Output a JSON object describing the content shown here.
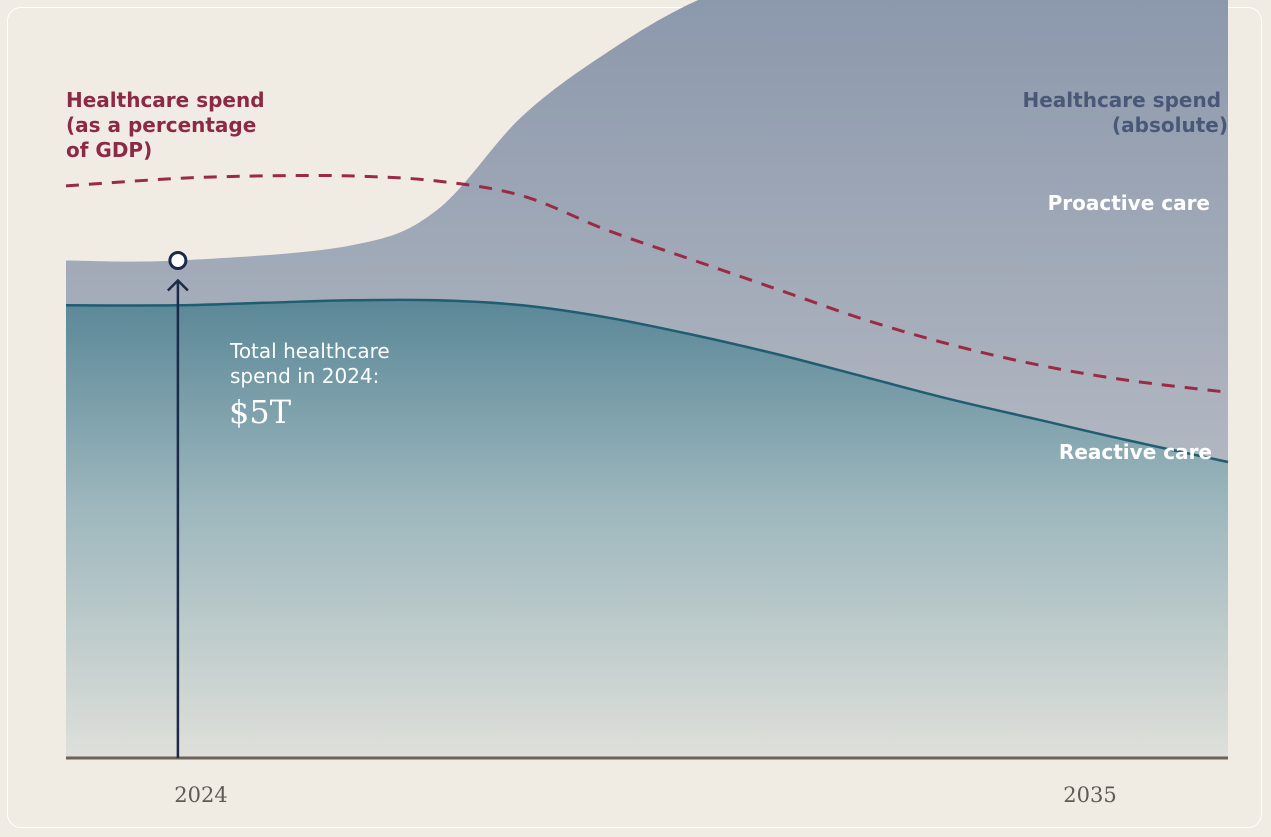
{
  "chart_data": {
    "type": "area",
    "left_axis_label": [
      "Healthcare spend",
      "(as a percentage",
      "of GDP)"
    ],
    "right_axis_label": [
      "Healthcare spend",
      "(absolute)"
    ],
    "x_ticks": [
      "2024",
      "2035"
    ],
    "x_range": [
      2022.7,
      2036.2
    ],
    "series": [
      {
        "name": "Proactive care",
        "role": "upper area (total absolute spend)",
        "x": [
          2022.7,
          2024,
          2026,
          2027,
          2028,
          2029,
          2030,
          2031,
          2032,
          2033,
          2034,
          2035,
          2036.2
        ],
        "values": [
          1.0,
          1.0,
          1.03,
          1.1,
          1.29,
          1.42,
          1.52,
          1.58,
          1.61,
          1.63,
          1.64,
          1.645,
          1.65
        ]
      },
      {
        "name": "Reactive care",
        "role": "lower area",
        "x": [
          2022.7,
          2024,
          2025,
          2026,
          2027,
          2028,
          2029,
          2030,
          2031,
          2032,
          2033,
          2034,
          2035,
          2036.2
        ],
        "values": [
          0.91,
          0.91,
          0.915,
          0.92,
          0.92,
          0.91,
          0.885,
          0.85,
          0.81,
          0.765,
          0.72,
          0.68,
          0.64,
          0.595
        ]
      },
      {
        "name": "Healthcare spend (as a percentage of GDP)",
        "role": "dashed line",
        "x": [
          2022.7,
          2024,
          2025,
          2026,
          2027,
          2028,
          2029,
          2030,
          2031,
          2032,
          2033,
          2034,
          2035,
          2036.2
        ],
        "values": [
          1.15,
          1.165,
          1.17,
          1.17,
          1.16,
          1.13,
          1.06,
          1.0,
          0.94,
          0.88,
          0.83,
          0.79,
          0.76,
          0.735
        ]
      }
    ],
    "series_labels": {
      "proactive": "Proactive care",
      "reactive": "Reactive care"
    },
    "annotation": {
      "x": 2024,
      "text_line1": "Total healthcare",
      "text_line2": "spend in 2024:",
      "value": "$5T"
    },
    "colors": {
      "proactive": "#8c98ad",
      "reactive": "#5e8b99",
      "dashed": "#9b2a44",
      "reactive_line": "#1f5d70",
      "annotation_line": "#1b2a4a",
      "axis": "#6b6258",
      "left_label": "#8c2a43",
      "right_label": "#4a5878"
    }
  }
}
